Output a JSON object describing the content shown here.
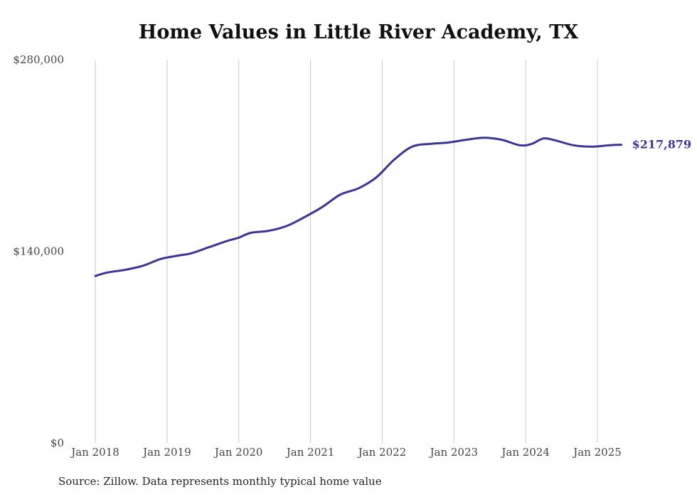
{
  "chart_data": {
    "type": "line",
    "title": "Home Values in Little River Academy, TX",
    "source": "Source: Zillow. Data represents monthly typical home value",
    "ylim": [
      0,
      280000
    ],
    "y_ticks": [
      {
        "value": 0,
        "label": "$0"
      },
      {
        "value": 140000,
        "label": "$140,000"
      },
      {
        "value": 280000,
        "label": "$280,000"
      }
    ],
    "x_ticks": [
      {
        "date": "2018-01",
        "label": "Jan 2018"
      },
      {
        "date": "2019-01",
        "label": "Jan 2019"
      },
      {
        "date": "2020-01",
        "label": "Jan 2020"
      },
      {
        "date": "2021-01",
        "label": "Jan 2021"
      },
      {
        "date": "2022-01",
        "label": "Jan 2022"
      },
      {
        "date": "2023-01",
        "label": "Jan 2023"
      },
      {
        "date": "2024-01",
        "label": "Jan 2024"
      },
      {
        "date": "2025-01",
        "label": "Jan 2025"
      }
    ],
    "x_range": [
      "2018-01",
      "2025-05"
    ],
    "grid": "vertical",
    "line_color": "#3b3596",
    "end_label": "$217,879",
    "series": [
      {
        "points": [
          [
            "2018-01",
            122000
          ],
          [
            "2018-03",
            124500
          ],
          [
            "2018-06",
            126500
          ],
          [
            "2018-09",
            129500
          ],
          [
            "2018-12",
            134500
          ],
          [
            "2019-03",
            137000
          ],
          [
            "2019-05",
            138500
          ],
          [
            "2019-08",
            143000
          ],
          [
            "2019-11",
            147500
          ],
          [
            "2020-01",
            150000
          ],
          [
            "2020-03",
            153500
          ],
          [
            "2020-06",
            155000
          ],
          [
            "2020-09",
            158500
          ],
          [
            "2020-12",
            165000
          ],
          [
            "2021-03",
            172500
          ],
          [
            "2021-06",
            181500
          ],
          [
            "2021-09",
            186000
          ],
          [
            "2021-12",
            194000
          ],
          [
            "2022-03",
            207000
          ],
          [
            "2022-06",
            216500
          ],
          [
            "2022-09",
            218500
          ],
          [
            "2022-12",
            219500
          ],
          [
            "2023-03",
            221500
          ],
          [
            "2023-06",
            223000
          ],
          [
            "2023-09",
            221500
          ],
          [
            "2023-12",
            217500
          ],
          [
            "2024-02",
            218500
          ],
          [
            "2024-04",
            222500
          ],
          [
            "2024-06",
            221000
          ],
          [
            "2024-09",
            217500
          ],
          [
            "2024-12",
            216500
          ],
          [
            "2025-03",
            217500
          ],
          [
            "2025-05",
            217879
          ]
        ]
      }
    ]
  }
}
